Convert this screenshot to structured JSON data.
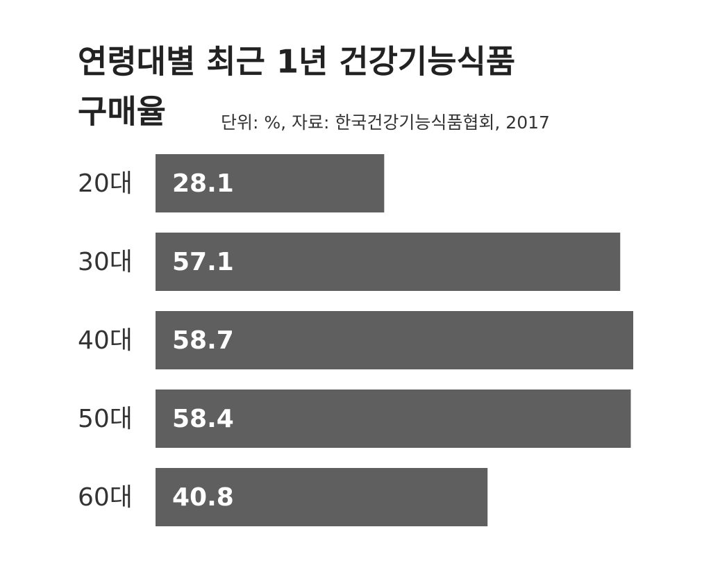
{
  "chart_data": {
    "type": "bar",
    "orientation": "horizontal",
    "title": [
      "연령대별 최근 1년 건강기능식품",
      "구매율"
    ],
    "subtitle": "단위: %, 자료: 한국건강기능식품협회, 2017",
    "categories": [
      "20대",
      "30대",
      "40대",
      "50대",
      "60대"
    ],
    "values": [
      28.1,
      57.1,
      58.7,
      58.4,
      40.8
    ],
    "color": "#5f5f5f"
  }
}
